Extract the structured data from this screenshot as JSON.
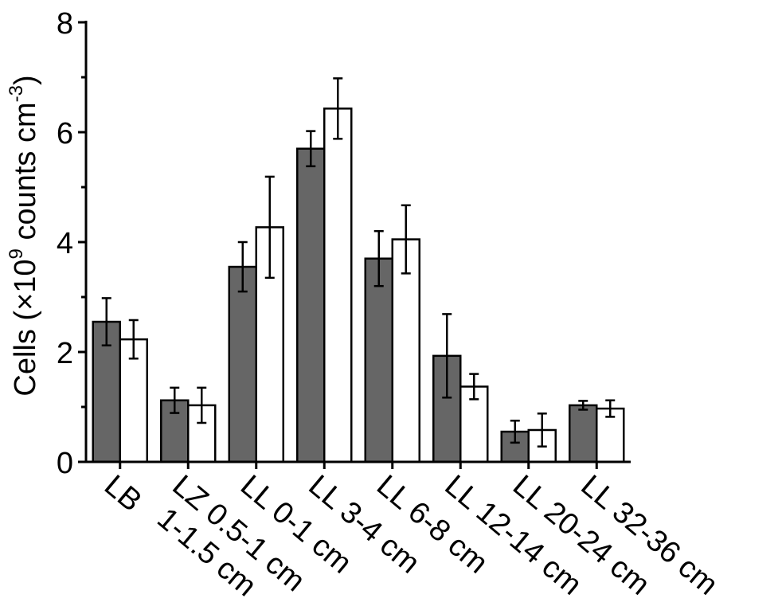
{
  "chart_data": {
    "type": "bar",
    "categories": [
      "LB",
      "LZ 0.5-1 cm\n1-1.5 cm",
      "LL 0-1 cm",
      "LL 3-4 cm",
      "LL 6-8 cm",
      "LL 12-14 cm",
      "LL 20-24 cm",
      "LL 32-36 cm"
    ],
    "category_lines": [
      [
        "LB"
      ],
      [
        "LZ 0.5-1 cm",
        "1-1.5 cm"
      ],
      [
        "LL 0-1 cm"
      ],
      [
        "LL 3-4 cm"
      ],
      [
        "LL 6-8 cm"
      ],
      [
        "LL 12-14 cm"
      ],
      [
        "LL 20-24 cm"
      ],
      [
        "LL 32-36 cm"
      ]
    ],
    "series": [
      {
        "values": [
          2.55,
          1.12,
          3.55,
          5.7,
          3.7,
          1.93,
          0.55,
          1.03
        ],
        "errors": [
          0.43,
          0.23,
          0.45,
          0.32,
          0.5,
          0.76,
          0.2,
          0.08
        ],
        "color": "#666666"
      },
      {
        "values": [
          2.23,
          1.03,
          4.27,
          6.43,
          4.05,
          1.37,
          0.58,
          0.97
        ],
        "errors": [
          0.35,
          0.32,
          0.92,
          0.55,
          0.62,
          0.23,
          0.3,
          0.15
        ],
        "color": "#ffffff"
      }
    ],
    "ylabel_prefix": "Cells (×10",
    "ylabel_exp1": "9",
    "ylabel_mid": " counts cm",
    "ylabel_exp2": "-3",
    "ylabel_suffix": ")",
    "ylim": [
      0,
      8
    ],
    "yticks": [
      "0",
      "2",
      "4",
      "6",
      "8"
    ],
    "ytick_values": [
      0,
      2,
      4,
      6,
      8
    ],
    "grid": false,
    "legend": "none"
  }
}
